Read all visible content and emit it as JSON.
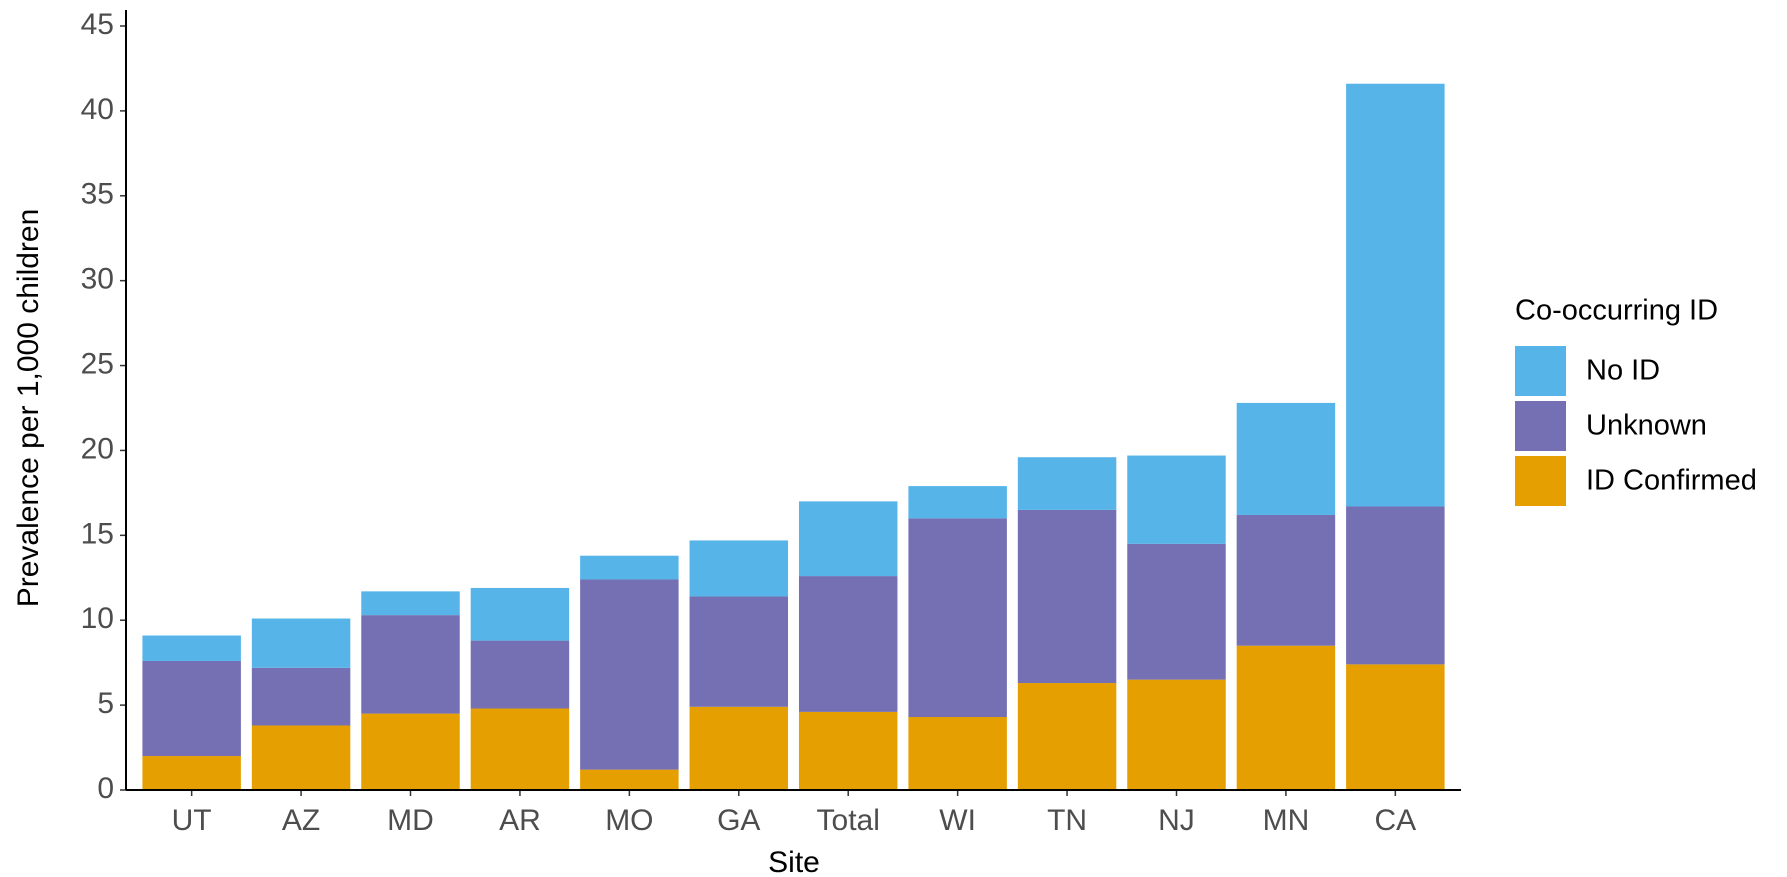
{
  "chart_data": {
    "type": "stacked_bar",
    "x_label": "Site",
    "y_label": "Prevalence per 1,000 children",
    "legend_title": "Co-occurring ID",
    "legend_position": "right",
    "categories": [
      "UT",
      "AZ",
      "MD",
      "AR",
      "MO",
      "GA",
      "Total",
      "WI",
      "TN",
      "NJ",
      "MN",
      "CA"
    ],
    "series": [
      {
        "name": "ID Confirmed",
        "color": "#E69F00",
        "values": [
          2.0,
          3.8,
          4.5,
          4.8,
          1.2,
          4.9,
          4.6,
          4.3,
          6.3,
          6.5,
          8.5,
          7.4
        ]
      },
      {
        "name": "Unknown",
        "color": "#7570B3",
        "values": [
          5.6,
          3.4,
          5.8,
          4.0,
          11.2,
          6.5,
          8.0,
          11.7,
          10.2,
          8.0,
          7.7,
          9.3
        ]
      },
      {
        "name": "No ID",
        "color": "#56B4E9",
        "values": [
          1.5,
          2.9,
          1.4,
          3.1,
          1.4,
          3.3,
          4.4,
          1.9,
          3.1,
          5.2,
          6.6,
          24.9
        ]
      }
    ],
    "ylim": [
      0,
      45
    ],
    "yticks": [
      0,
      5,
      10,
      15,
      20,
      25,
      30,
      35,
      40,
      45
    ],
    "grid": false
  }
}
